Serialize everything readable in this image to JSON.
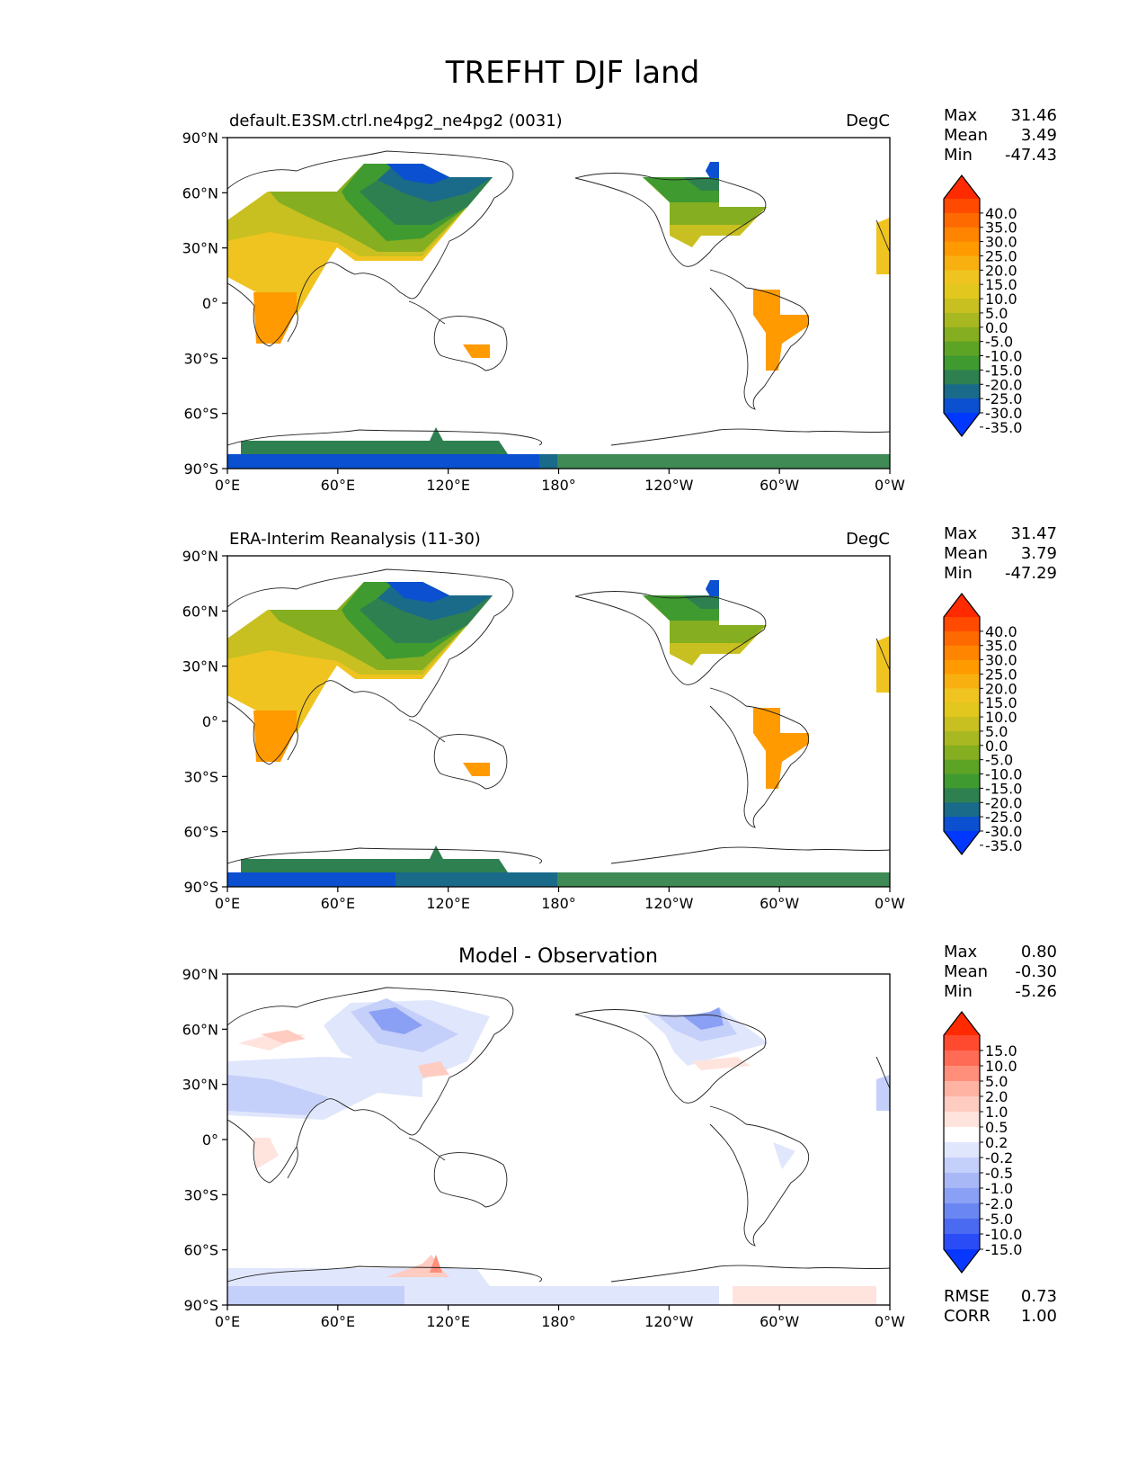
{
  "figure_title": "TREFHT DJF land",
  "x_ticks": [
    "0°E",
    "60°E",
    "120°E",
    "180°",
    "120°W",
    "60°W",
    "0°W"
  ],
  "y_ticks": [
    "90°N",
    "60°N",
    "30°N",
    "0°",
    "30°S",
    "60°S",
    "90°S"
  ],
  "panels": [
    {
      "title_left": "default.E3SM.ctrl.ne4pg2_ne4pg2 (0031)",
      "title_right": "DegC",
      "stats": [
        {
          "label": "Max",
          "value": "31.46"
        },
        {
          "label": "Mean",
          "value": "3.49"
        },
        {
          "label": "Min",
          "value": "-47.43"
        }
      ]
    },
    {
      "title_left": "ERA-Interim Reanalysis (11-30)",
      "title_right": "DegC",
      "stats": [
        {
          "label": "Max",
          "value": "31.47"
        },
        {
          "label": "Mean",
          "value": "3.79"
        },
        {
          "label": "Min",
          "value": "-47.29"
        }
      ]
    },
    {
      "title_center": "Model - Observation",
      "stats": [
        {
          "label": "Max",
          "value": "0.80"
        },
        {
          "label": "Mean",
          "value": "-0.30"
        },
        {
          "label": "Min",
          "value": "-5.26"
        }
      ],
      "extra_stats": [
        {
          "label": "RMSE",
          "value": "0.73"
        },
        {
          "label": "CORR",
          "value": "1.00"
        }
      ]
    }
  ],
  "colorbar_temp": {
    "labels": [
      "40.0",
      "35.0",
      "30.0",
      "25.0",
      "20.0",
      "15.0",
      "10.0",
      "5.0",
      "0.0",
      "-5.0",
      "-10.0",
      "-15.0",
      "-20.0",
      "-25.0",
      "-30.0",
      "-35.0"
    ],
    "colors": [
      "#ff2a00",
      "#ff4a00",
      "#ff6a00",
      "#ff8400",
      "#ff9a00",
      "#f7b010",
      "#f0c420",
      "#e2c81e",
      "#c8c020",
      "#a8b820",
      "#85ae20",
      "#5ea424",
      "#3f9a30",
      "#2f8050",
      "#1a6a8a",
      "#0a50d0",
      "#0038ff"
    ]
  },
  "colorbar_diff": {
    "labels": [
      "15.0",
      "10.0",
      "5.0",
      "2.0",
      "1.0",
      "0.5",
      "0.2",
      "-0.2",
      "-0.5",
      "-1.0",
      "-2.0",
      "-5.0",
      "-10.0",
      "-15.0"
    ],
    "colors": [
      "#ff2a00",
      "#ff4a30",
      "#ff6b55",
      "#ff8f7a",
      "#ffb3a3",
      "#ffccc2",
      "#ffe4de",
      "#ffffff",
      "#e0e6fc",
      "#c4cffa",
      "#a8b8f6",
      "#8aa0f4",
      "#6a86f2",
      "#4a6af2",
      "#2a4cf6",
      "#0838ff"
    ]
  }
}
